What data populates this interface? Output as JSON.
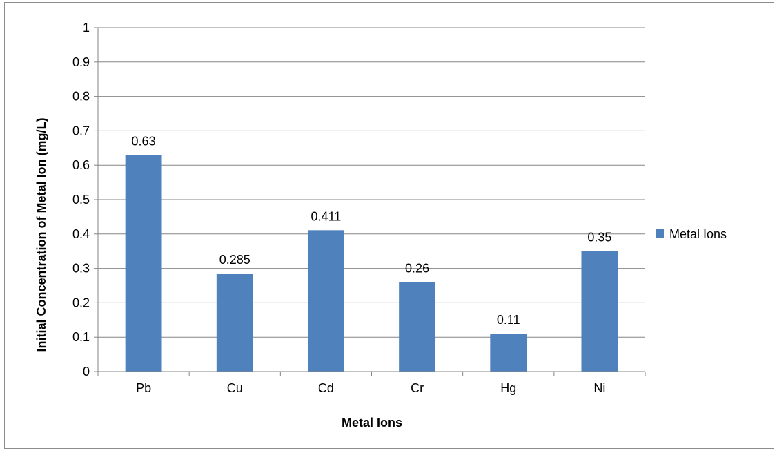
{
  "chart_data": {
    "type": "bar",
    "categories": [
      "Pb",
      "Cu",
      "Cd",
      "Cr",
      "Hg",
      "Ni"
    ],
    "series": [
      {
        "name": "Metal Ions",
        "values": [
          0.63,
          0.285,
          0.411,
          0.26,
          0.11,
          0.35
        ],
        "color": "#4f81bd"
      }
    ],
    "data_labels": [
      "0.63",
      "0.285",
      "0.411",
      "0.26",
      "0.11",
      "0.35"
    ],
    "xlabel": "Metal Ions",
    "ylabel": "Initial Concentration of Metal Ion (mg/L)",
    "ylim": [
      0,
      1
    ],
    "y_ticks": [
      "0",
      "0.1",
      "0.2",
      "0.3",
      "0.4",
      "0.5",
      "0.6",
      "0.7",
      "0.8",
      "0.9",
      "1"
    ],
    "grid": true,
    "legend_position": "right",
    "gridline_color": "#868686"
  }
}
